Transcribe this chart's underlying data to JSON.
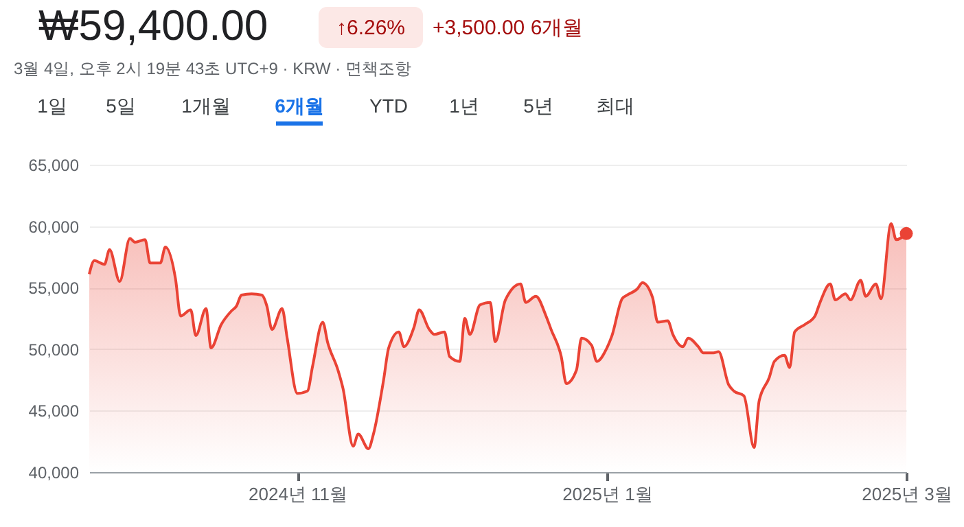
{
  "chart_data": {
    "type": "area",
    "title": "₩59,400.00",
    "subtitle": "3월 4일, 오후 2시 19분 43초 UTC+9 · KRW · 면책조항",
    "annotations": [
      "↑6.26%",
      "+3,500.00 6개월",
      "1일",
      "5일",
      "1개월",
      "6개월",
      "YTD",
      "1년",
      "5년",
      "최대"
    ],
    "x": [
      "2024-09-21",
      "2024-09-22",
      "2024-09-24",
      "2024-09-25",
      "2024-09-27",
      "2024-09-29",
      "2024-09-30",
      "2024-10-02",
      "2024-10-03",
      "2024-10-05",
      "2024-10-06",
      "2024-10-08",
      "2024-10-09",
      "2024-10-11",
      "2024-10-12",
      "2024-10-14",
      "2024-10-15",
      "2024-10-17",
      "2024-10-19",
      "2024-10-20",
      "2024-10-21",
      "2024-10-23",
      "2024-10-25",
      "2024-10-26",
      "2024-10-27",
      "2024-10-29",
      "2024-10-30",
      "2024-11-01",
      "2024-11-03",
      "2024-11-04",
      "2024-11-06",
      "2024-11-07",
      "2024-11-09",
      "2024-11-10",
      "2024-11-12",
      "2024-11-13",
      "2024-11-15",
      "2024-11-16",
      "2024-11-18",
      "2024-11-19",
      "2024-11-21",
      "2024-11-22",
      "2024-11-24",
      "2024-11-25",
      "2024-11-27",
      "2024-11-28",
      "2024-11-30",
      "2024-12-01",
      "2024-12-03",
      "2024-12-04",
      "2024-12-05",
      "2024-12-07",
      "2024-12-09",
      "2024-12-10",
      "2024-12-12",
      "2024-12-15",
      "2024-12-16",
      "2024-12-18",
      "2024-12-20",
      "2024-12-21",
      "2024-12-23",
      "2024-12-24",
      "2024-12-26",
      "2024-12-27",
      "2024-12-29",
      "2024-12-30",
      "2025-01-01",
      "2025-01-02",
      "2025-01-04",
      "2025-01-05",
      "2025-01-07",
      "2025-01-08",
      "2025-01-10",
      "2025-01-11",
      "2025-01-13",
      "2025-01-14",
      "2025-01-16",
      "2025-01-17",
      "2025-01-19",
      "2025-01-20",
      "2025-01-22",
      "2025-01-23",
      "2025-01-25",
      "2025-01-26",
      "2025-01-28",
      "2025-01-30",
      "2025-01-31",
      "2025-02-02",
      "2025-02-03",
      "2025-02-05",
      "2025-02-06",
      "2025-02-07",
      "2025-02-09",
      "2025-02-11",
      "2025-02-12",
      "2025-02-14",
      "2025-02-15",
      "2025-02-17",
      "2025-02-18",
      "2025-02-20",
      "2025-02-21",
      "2025-02-23",
      "2025-02-24",
      "2025-02-26",
      "2025-02-27",
      "2025-03-01"
    ],
    "series": [
      {
        "color": "#ea4335",
        "values": [
          56100,
          57200,
          56900,
          58100,
          55500,
          59000,
          58700,
          58900,
          57000,
          57000,
          58300,
          55700,
          52700,
          53200,
          51100,
          53300,
          50100,
          52000,
          53100,
          53500,
          54400,
          54500,
          54400,
          53500,
          51600,
          53300,
          50900,
          46400,
          46600,
          48600,
          52200,
          50500,
          48300,
          46800,
          42100,
          43100,
          41900,
          43100,
          47500,
          50100,
          51400,
          50200,
          51800,
          53200,
          51600,
          51200,
          51400,
          49400,
          49000,
          52500,
          51200,
          53600,
          53800,
          50600,
          54000,
          55300,
          53800,
          54300,
          52700,
          51600,
          49400,
          47200,
          48300,
          50900,
          50300,
          49000,
          50100,
          51100,
          54100,
          54400,
          54900,
          55400,
          54200,
          52200,
          52300,
          51200,
          50200,
          50900,
          50200,
          49700,
          49700,
          49800,
          47100,
          46600,
          46200,
          42000,
          45800,
          47700,
          49000,
          49500,
          48500,
          51400,
          52000,
          52700,
          53800,
          55300,
          54000,
          54500,
          54000,
          55600,
          54300,
          55300,
          54100,
          60200,
          58900,
          59400
        ]
      }
    ],
    "xlim": [
      "2024-09-21",
      "2025-03-01"
    ],
    "xticks": [
      {
        "value": "2024-11-01",
        "label": "2024년 11월"
      },
      {
        "value": "2025-01-01",
        "label": "2025년 1월"
      },
      {
        "value": "2025-03-01",
        "label": "2025년 3월"
      }
    ],
    "ylim": [
      40000,
      65000
    ],
    "yticks": [
      {
        "value": 40000,
        "label": "40,000"
      },
      {
        "value": 45000,
        "label": "45,000"
      },
      {
        "value": 50000,
        "label": "50,000"
      },
      {
        "value": 55000,
        "label": "55,000"
      },
      {
        "value": 60000,
        "label": "60,000"
      },
      {
        "value": 65000,
        "label": "65,000"
      }
    ],
    "grid": "y"
  }
}
